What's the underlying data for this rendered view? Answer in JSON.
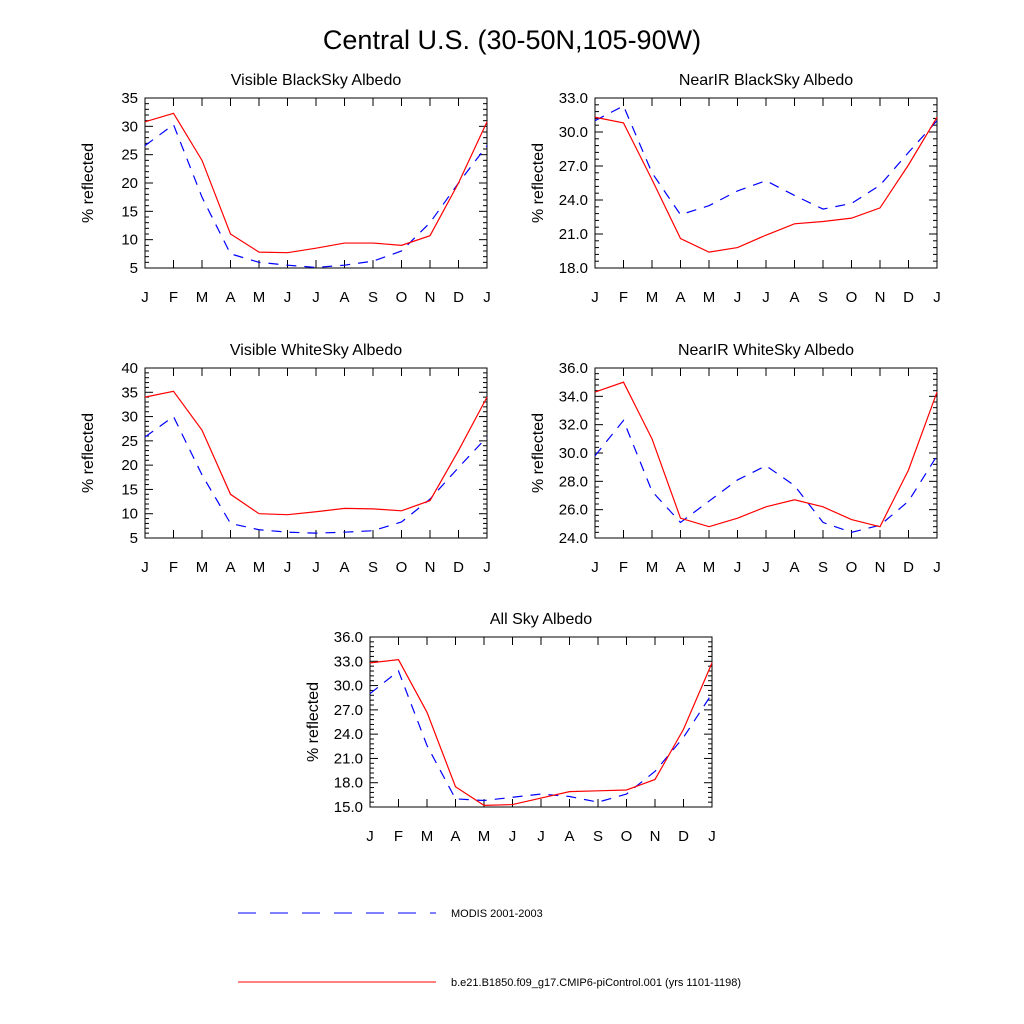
{
  "figure": {
    "title": "Central U.S. (30-50N,105-90W)"
  },
  "colors": {
    "modis": "#0000ff",
    "model": "#ff0000"
  },
  "legend": {
    "items": [
      {
        "label": "MODIS 2001-2003",
        "color": "#0000ff",
        "style": "dashed"
      },
      {
        "label": "b.e21.B1850.f09_g17.CMIP6-piControl.001 (yrs 1101-1198)",
        "color": "#ff0000",
        "style": "solid"
      }
    ]
  },
  "chart_data": [
    {
      "type": "line",
      "title": "Visible BlackSky Albedo",
      "ylabel": "% reflected",
      "categories": [
        "J",
        "F",
        "M",
        "A",
        "M",
        "J",
        "J",
        "A",
        "S",
        "O",
        "N",
        "D",
        "J"
      ],
      "ylim": [
        5,
        35
      ],
      "yticks": [
        "5",
        "10",
        "15",
        "20",
        "25",
        "30",
        "35"
      ],
      "series": [
        {
          "name": "MODIS 2001-2003",
          "style": "dashed",
          "values": [
            26.6,
            30.3,
            17.5,
            7.5,
            6.0,
            5.5,
            5.1,
            5.5,
            6.2,
            8.0,
            13.0,
            20.0,
            26.6
          ]
        },
        {
          "name": "b.e21.B1850.f09_g17.CMIP6-piControl.001 (yrs 1101-1198)",
          "style": "solid",
          "values": [
            30.8,
            32.3,
            24.0,
            11.0,
            7.8,
            7.7,
            8.5,
            9.4,
            9.4,
            9.0,
            10.7,
            20.0,
            30.8
          ]
        }
      ]
    },
    {
      "type": "line",
      "title": "NearIR BlackSky Albedo",
      "ylabel": "% reflected",
      "categories": [
        "J",
        "F",
        "M",
        "A",
        "M",
        "J",
        "J",
        "A",
        "S",
        "O",
        "N",
        "D",
        "J"
      ],
      "ylim": [
        18,
        33
      ],
      "yticks": [
        "18.0",
        "21.0",
        "24.0",
        "27.0",
        "30.0",
        "33.0"
      ],
      "series": [
        {
          "name": "MODIS 2001-2003",
          "style": "dashed",
          "values": [
            31.0,
            32.3,
            26.4,
            22.7,
            23.5,
            24.8,
            25.7,
            24.4,
            23.2,
            23.7,
            25.3,
            28.2,
            31.0
          ]
        },
        {
          "name": "b.e21.B1850.f09_g17.CMIP6-piControl.001 (yrs 1101-1198)",
          "style": "solid",
          "values": [
            31.3,
            30.8,
            25.8,
            20.6,
            19.4,
            19.8,
            20.9,
            21.9,
            22.1,
            22.4,
            23.3,
            27.1,
            31.3
          ]
        }
      ]
    },
    {
      "type": "line",
      "title": "Visible WhiteSky Albedo",
      "ylabel": "% reflected",
      "categories": [
        "J",
        "F",
        "M",
        "A",
        "M",
        "J",
        "J",
        "A",
        "S",
        "O",
        "N",
        "D",
        "J"
      ],
      "ylim": [
        5,
        40
      ],
      "yticks": [
        "5",
        "10",
        "15",
        "20",
        "25",
        "30",
        "35",
        "40"
      ],
      "series": [
        {
          "name": "MODIS 2001-2003",
          "style": "dashed",
          "values": [
            25.8,
            30.0,
            18.0,
            8.0,
            6.7,
            6.2,
            6.0,
            6.2,
            6.5,
            8.3,
            13.0,
            19.5,
            25.8
          ]
        },
        {
          "name": "b.e21.B1850.f09_g17.CMIP6-piControl.001 (yrs 1101-1198)",
          "style": "solid",
          "values": [
            34.0,
            35.2,
            27.2,
            14.0,
            10.0,
            9.8,
            10.4,
            11.1,
            11.0,
            10.6,
            12.7,
            23.0,
            34.0
          ]
        }
      ]
    },
    {
      "type": "line",
      "title": "NearIR WhiteSky Albedo",
      "ylabel": "% reflected",
      "categories": [
        "J",
        "F",
        "M",
        "A",
        "M",
        "J",
        "J",
        "A",
        "S",
        "O",
        "N",
        "D",
        "J"
      ],
      "ylim": [
        24,
        36
      ],
      "yticks": [
        "24.0",
        "26.0",
        "28.0",
        "30.0",
        "32.0",
        "34.0",
        "36.0"
      ],
      "series": [
        {
          "name": "MODIS 2001-2003",
          "style": "dashed",
          "values": [
            29.8,
            32.3,
            27.3,
            25.1,
            26.6,
            28.1,
            29.1,
            27.7,
            25.1,
            24.4,
            24.9,
            26.6,
            29.8
          ]
        },
        {
          "name": "b.e21.B1850.f09_g17.CMIP6-piControl.001 (yrs 1101-1198)",
          "style": "solid",
          "values": [
            34.3,
            35.0,
            31.0,
            25.4,
            24.8,
            25.4,
            26.2,
            26.7,
            26.2,
            25.3,
            24.8,
            28.8,
            34.3
          ]
        }
      ]
    },
    {
      "type": "line",
      "title": "All Sky Albedo",
      "ylabel": "% reflected",
      "categories": [
        "J",
        "F",
        "M",
        "A",
        "M",
        "J",
        "J",
        "A",
        "S",
        "O",
        "N",
        "D",
        "J"
      ],
      "ylim": [
        15,
        36
      ],
      "yticks": [
        "15.0",
        "18.0",
        "21.0",
        "24.0",
        "27.0",
        "30.0",
        "33.0",
        "36.0"
      ],
      "series": [
        {
          "name": "MODIS 2001-2003",
          "style": "dashed",
          "values": [
            29.0,
            31.8,
            22.6,
            16.0,
            15.8,
            16.2,
            16.6,
            16.3,
            15.6,
            16.6,
            19.4,
            23.6,
            29.0
          ]
        },
        {
          "name": "b.e21.B1850.f09_g17.CMIP6-piControl.001 (yrs 1101-1198)",
          "style": "solid",
          "values": [
            32.8,
            33.2,
            26.7,
            17.5,
            15.2,
            15.3,
            16.1,
            16.9,
            17.0,
            17.1,
            18.4,
            24.6,
            32.8
          ]
        }
      ]
    }
  ]
}
